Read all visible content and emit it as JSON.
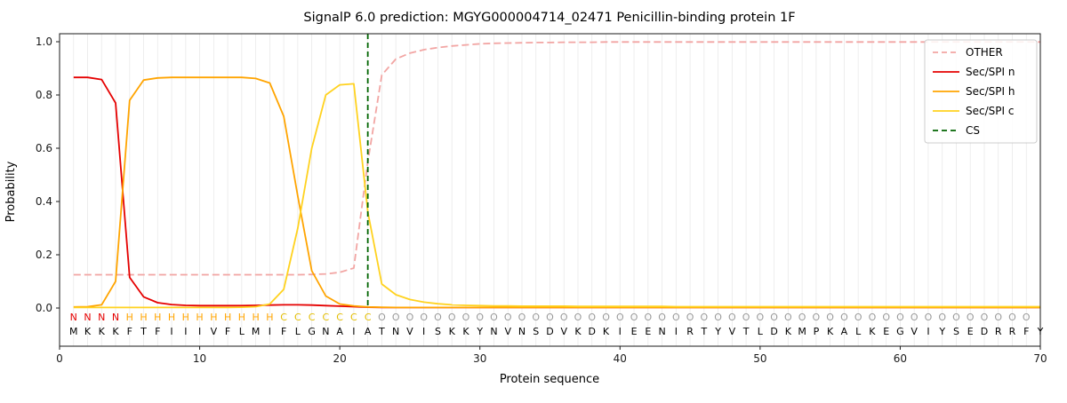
{
  "chart_data": {
    "type": "line",
    "title": "SignalP 6.0 prediction: MGYG000004714_02471 Penicillin-binding protein 1F",
    "xlabel": "Protein sequence",
    "ylabel": "Probability",
    "xlim": [
      0,
      70
    ],
    "ylim": [
      -0.145,
      1.03
    ],
    "x_ticks": [
      0,
      10,
      20,
      30,
      40,
      50,
      60,
      70
    ],
    "y_ticks": [
      0.0,
      0.2,
      0.4,
      0.6,
      0.8,
      1.0
    ],
    "grid": "vertical gridline at every residue position, no horizontal gridlines",
    "legend_position": "upper right",
    "x_start": 1,
    "series": [
      {
        "name": "OTHER",
        "color": "#f2a5a3",
        "dash": true,
        "values": [
          0.125,
          0.125,
          0.125,
          0.125,
          0.125,
          0.125,
          0.125,
          0.125,
          0.125,
          0.125,
          0.125,
          0.125,
          0.125,
          0.125,
          0.125,
          0.125,
          0.125,
          0.126,
          0.128,
          0.134,
          0.15,
          0.55,
          0.875,
          0.935,
          0.957,
          0.97,
          0.978,
          0.984,
          0.988,
          0.992,
          0.994,
          0.995,
          0.996,
          0.997,
          0.997,
          0.998,
          0.998,
          0.998,
          0.999,
          0.999,
          0.999,
          0.999,
          0.999,
          0.999,
          0.999,
          0.999,
          0.999,
          0.999,
          0.999,
          0.999,
          0.999,
          0.999,
          0.999,
          0.999,
          0.999,
          0.999,
          0.999,
          0.999,
          0.999,
          0.999,
          0.999,
          0.999,
          0.999,
          0.999,
          0.999,
          0.999,
          0.999,
          0.999,
          0.999,
          0.999
        ]
      },
      {
        "name": "Sec/SPI n",
        "color": "#e50000",
        "dash": false,
        "values": [
          0.866,
          0.866,
          0.858,
          0.77,
          0.115,
          0.042,
          0.02,
          0.013,
          0.01,
          0.009,
          0.009,
          0.009,
          0.009,
          0.01,
          0.011,
          0.012,
          0.012,
          0.011,
          0.009,
          0.007,
          0.005,
          0.003,
          0.002,
          0.002,
          0.002,
          0.002,
          0.002,
          0.002,
          0.002,
          0.002,
          0.002,
          0.002,
          0.002,
          0.002,
          0.002,
          0.002,
          0.002,
          0.002,
          0.002,
          0.002,
          0.002,
          0.002,
          0.002,
          0.002,
          0.002,
          0.002,
          0.002,
          0.002,
          0.002,
          0.002,
          0.002,
          0.002,
          0.002,
          0.002,
          0.002,
          0.002,
          0.002,
          0.002,
          0.002,
          0.002,
          0.002,
          0.002,
          0.002,
          0.002,
          0.002,
          0.002,
          0.002,
          0.002,
          0.002,
          0.002
        ]
      },
      {
        "name": "Sec/SPI h",
        "color": "#ffa400",
        "dash": false,
        "values": [
          0.004,
          0.005,
          0.012,
          0.1,
          0.78,
          0.856,
          0.864,
          0.866,
          0.866,
          0.866,
          0.866,
          0.866,
          0.866,
          0.862,
          0.845,
          0.72,
          0.42,
          0.14,
          0.045,
          0.015,
          0.008,
          0.004,
          0.003,
          0.002,
          0.002,
          0.002,
          0.002,
          0.002,
          0.002,
          0.002,
          0.002,
          0.002,
          0.002,
          0.002,
          0.002,
          0.002,
          0.002,
          0.002,
          0.002,
          0.002,
          0.002,
          0.002,
          0.002,
          0.002,
          0.002,
          0.002,
          0.002,
          0.002,
          0.002,
          0.002,
          0.002,
          0.002,
          0.002,
          0.002,
          0.002,
          0.002,
          0.002,
          0.002,
          0.002,
          0.002,
          0.002,
          0.002,
          0.002,
          0.002,
          0.002,
          0.002,
          0.002,
          0.002,
          0.002,
          0.002
        ]
      },
      {
        "name": "Sec/SPI c",
        "color": "#ffd21f",
        "dash": false,
        "values": [
          0.002,
          0.002,
          0.002,
          0.002,
          0.002,
          0.002,
          0.002,
          0.002,
          0.002,
          0.002,
          0.002,
          0.002,
          0.003,
          0.005,
          0.015,
          0.07,
          0.3,
          0.6,
          0.8,
          0.838,
          0.842,
          0.36,
          0.09,
          0.05,
          0.032,
          0.022,
          0.016,
          0.012,
          0.01,
          0.009,
          0.008,
          0.008,
          0.007,
          0.007,
          0.007,
          0.007,
          0.006,
          0.006,
          0.006,
          0.006,
          0.006,
          0.006,
          0.006,
          0.005,
          0.005,
          0.005,
          0.005,
          0.005,
          0.005,
          0.005,
          0.005,
          0.005,
          0.005,
          0.005,
          0.005,
          0.005,
          0.005,
          0.005,
          0.005,
          0.005,
          0.005,
          0.005,
          0.005,
          0.005,
          0.005,
          0.005,
          0.005,
          0.005,
          0.005,
          0.005
        ]
      }
    ],
    "cs_line": {
      "name": "CS",
      "x": 22,
      "color": "#006400",
      "dash": true
    },
    "sequence": "MKKKFTFIIIVFLMIFLGNAIATNVISKKYNVNSDVKDKIEENIRTYVTLDKMPKALKEGVIYSEDRRFY",
    "region_labels": "NNNNHHHHHHHHHHHCCCCCCCOOOOOOOOOOOOOOOOOOOOOOOOOOOOOOOOOOOOOOOOOOOOOOO",
    "region_colors": {
      "N": "#e50000",
      "H": "#ffa400",
      "C": "#e3bd00",
      "O": "#9a9a9a"
    },
    "legend_entries": [
      "OTHER",
      "Sec/SPI n",
      "Sec/SPI h",
      "Sec/SPI c",
      "CS"
    ]
  }
}
